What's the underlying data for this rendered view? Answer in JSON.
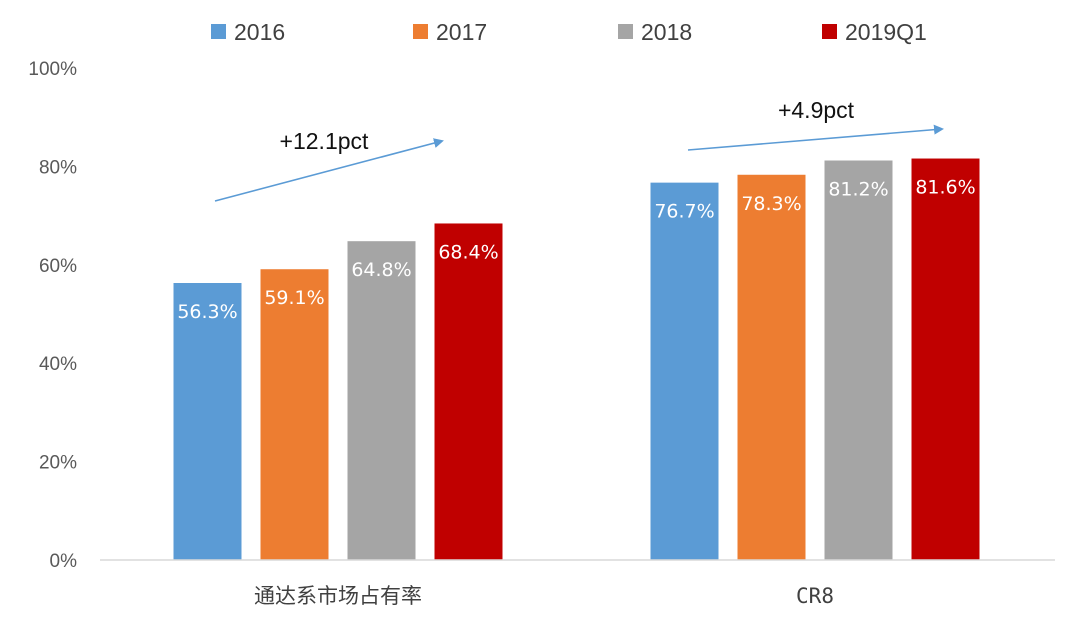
{
  "chart_data": {
    "type": "bar",
    "categories": [
      "通达系市场占有率",
      "CR8"
    ],
    "series": [
      {
        "name": "2016",
        "values": [
          56.3,
          76.7
        ],
        "labels": [
          "56.3%",
          "76.7%"
        ],
        "color": "#5B9BD5"
      },
      {
        "name": "2017",
        "values": [
          59.1,
          78.3
        ],
        "labels": [
          "59.1%",
          "78.3%"
        ],
        "color": "#ED7D31"
      },
      {
        "name": "2018",
        "values": [
          64.8,
          81.2
        ],
        "labels": [
          "64.8%",
          "81.2%"
        ],
        "color": "#A5A5A5"
      },
      {
        "name": "2019Q1",
        "values": [
          68.4,
          81.6
        ],
        "labels": [
          "68.4%",
          "81.6%"
        ],
        "color": "#C00000"
      }
    ],
    "ylim": [
      0,
      100
    ],
    "yticks": [
      "0%",
      "20%",
      "40%",
      "60%",
      "80%",
      "100%"
    ],
    "legend_position": "top",
    "grid": false,
    "annotations": [
      {
        "text": "+12.1pct",
        "category": "通达系市场占有率"
      },
      {
        "text": "+4.9pct",
        "category": "CR8"
      }
    ],
    "annotation_arrow_color": "#5B9BD5",
    "axis_color": "#D9D9D9"
  }
}
